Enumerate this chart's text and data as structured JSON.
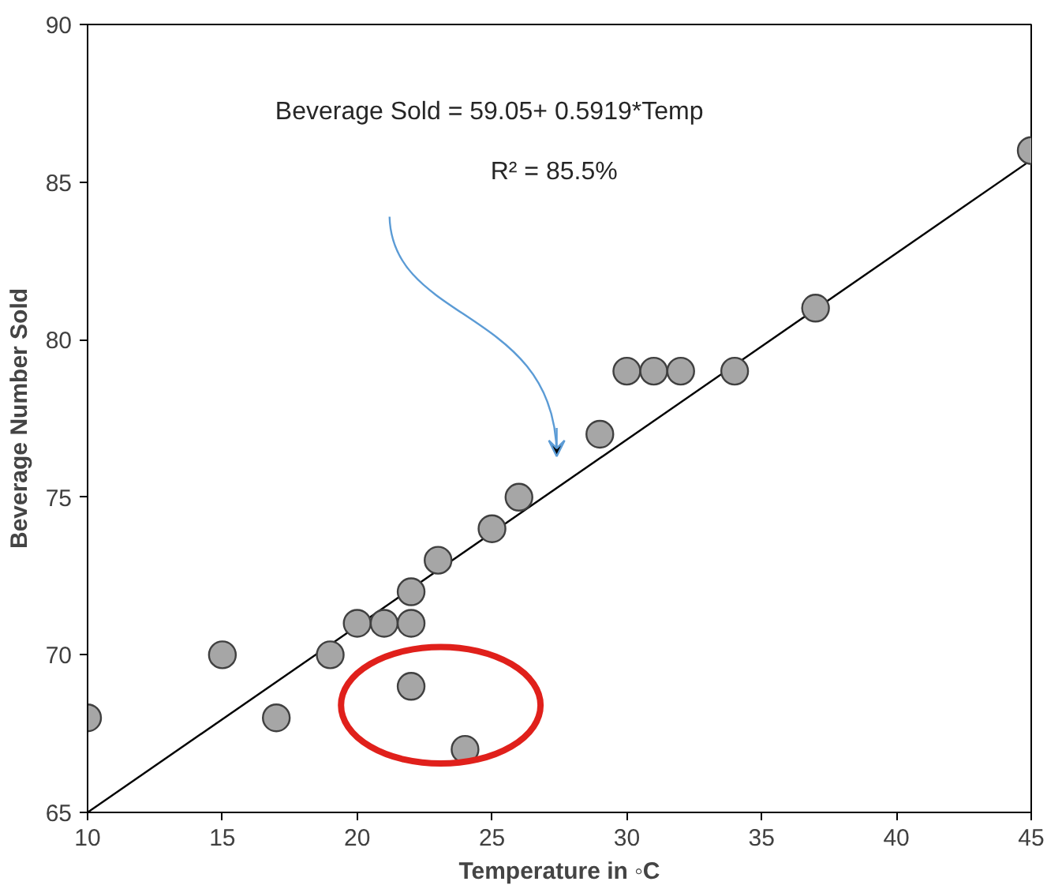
{
  "chart_data": {
    "type": "scatter",
    "xlabel": "Temperature in ◦C",
    "ylabel": "Beverage Number Sold",
    "annotations": [
      "Beverage Sold = 59.05+ 0.5919*Temp",
      "R² = 85.5%"
    ],
    "series": [
      {
        "marker": "circle",
        "color": "#a6a6a6",
        "x": [
          10,
          15,
          17,
          19,
          20,
          21,
          22,
          22,
          22,
          23,
          24,
          25,
          26,
          29,
          30,
          31,
          32,
          34,
          37,
          45
        ],
        "values": [
          68,
          70,
          68,
          70,
          71,
          71,
          72,
          71,
          69,
          73,
          67,
          74,
          75,
          77,
          79,
          79,
          79,
          79,
          81,
          86
        ]
      },
      {
        "type": "line",
        "marker": "none",
        "color": "#000000",
        "x": [
          10,
          45
        ],
        "values": [
          65.0,
          85.7
        ]
      }
    ],
    "grid": false,
    "xlim": [
      10,
      45
    ],
    "xticks": [
      10,
      15,
      20,
      25,
      30,
      35,
      40,
      45
    ],
    "ylim": [
      65,
      90
    ],
    "yticks": [
      65,
      70,
      75,
      80,
      85,
      90
    ]
  }
}
